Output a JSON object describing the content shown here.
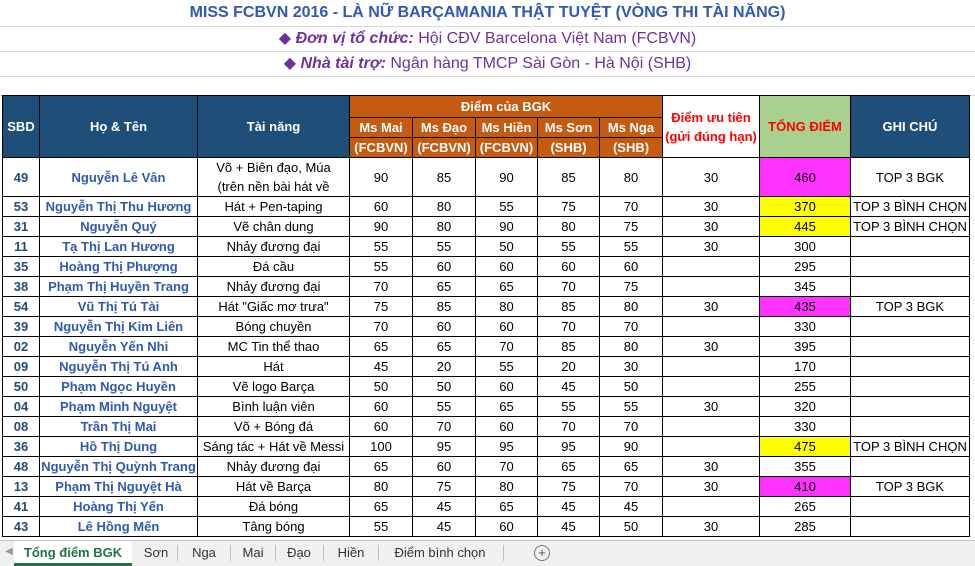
{
  "title": "MISS FCBVN 2016 - LÀ NỮ BARÇAMANIA THẬT TUYỆT (VÒNG THI TÀI NĂNG)",
  "organizer": {
    "label": "Đơn vị tổ chức:",
    "value": "Hội CĐV Barcelona Việt Nam (FCBVN)"
  },
  "sponsor": {
    "label": "Nhà tài trợ:",
    "value": "Ngân hàng TMCP Sài Gòn - Hà Nội (SHB)"
  },
  "bullet": "◆",
  "headers": {
    "sbd": "SBD",
    "name": "Họ & Tên",
    "talent": "Tài năng",
    "judges_group": "Điểm của BGK",
    "judges": [
      {
        "name": "Ms Mai",
        "org": "(FCBVN)"
      },
      {
        "name": "Ms Đạo",
        "org": "(FCBVN)"
      },
      {
        "name": "Ms Hiền",
        "org": "(FCBVN)"
      },
      {
        "name": "Ms Sơn",
        "org": "(SHB)"
      },
      {
        "name": "Ms Nga",
        "org": "(SHB)"
      }
    ],
    "priority_line1": "Điểm ưu tiên",
    "priority_line2": "(gửi đúng hạn)",
    "total": "TỔNG ĐIỂM",
    "note": "GHI CHÚ"
  },
  "rows": [
    {
      "sbd": "49",
      "name": "Nguyễn Lê Vân",
      "talent": "Võ + Biên đạo, Múa",
      "talent2": "(trên nền bài hát về",
      "mai": "90",
      "dao": "85",
      "hien": "90",
      "son": "85",
      "nga": "80",
      "priority": "30",
      "total": "460",
      "highlight": "magenta",
      "note": "TOP 3 BGK"
    },
    {
      "sbd": "53",
      "name": "Nguyễn Thị Thu Hương",
      "talent": "Hát + Pen-taping",
      "mai": "60",
      "dao": "80",
      "hien": "55",
      "son": "75",
      "nga": "70",
      "priority": "30",
      "total": "370",
      "highlight": "yellow",
      "note": "TOP 3 BÌNH CHỌN"
    },
    {
      "sbd": "31",
      "name": "Nguyễn Quý",
      "talent": "Vẽ chân dung",
      "mai": "90",
      "dao": "80",
      "hien": "90",
      "son": "80",
      "nga": "75",
      "priority": "30",
      "total": "445",
      "highlight": "yellow",
      "note": "TOP 3 BÌNH CHỌN"
    },
    {
      "sbd": "11",
      "name": "Tạ Thị Lan Hương",
      "talent": "Nhảy đương đại",
      "mai": "55",
      "dao": "55",
      "hien": "50",
      "son": "55",
      "nga": "55",
      "priority": "30",
      "total": "300",
      "highlight": "",
      "note": ""
    },
    {
      "sbd": "35",
      "name": "Hoàng Thị Phượng",
      "talent": "Đá cầu",
      "mai": "55",
      "dao": "60",
      "hien": "60",
      "son": "60",
      "nga": "60",
      "priority": "",
      "total": "295",
      "highlight": "",
      "note": ""
    },
    {
      "sbd": "38",
      "name": "Phạm Thị Huyền Trang",
      "talent": "Nhảy đương đại",
      "mai": "70",
      "dao": "65",
      "hien": "65",
      "son": "70",
      "nga": "75",
      "priority": "",
      "total": "345",
      "highlight": "",
      "note": ""
    },
    {
      "sbd": "54",
      "name": "Vũ Thị Tú Tài",
      "talent": "Hát \"Giấc mơ trưa\"",
      "mai": "75",
      "dao": "85",
      "hien": "80",
      "son": "85",
      "nga": "80",
      "priority": "30",
      "total": "435",
      "highlight": "magenta",
      "note": "TOP 3 BGK"
    },
    {
      "sbd": "39",
      "name": "Nguyễn Thị Kim Liên",
      "talent": "Bóng chuyền",
      "mai": "70",
      "dao": "60",
      "hien": "60",
      "son": "70",
      "nga": "70",
      "priority": "",
      "total": "330",
      "highlight": "",
      "note": ""
    },
    {
      "sbd": "02",
      "name": "Nguyễn Yến Nhi",
      "talent": "MC Tin thể thao",
      "mai": "65",
      "dao": "65",
      "hien": "70",
      "son": "85",
      "nga": "80",
      "priority": "30",
      "total": "395",
      "highlight": "",
      "note": ""
    },
    {
      "sbd": "09",
      "name": "Nguyễn Thị Tú Anh",
      "talent": "Hát",
      "mai": "45",
      "dao": "20",
      "hien": "55",
      "son": "20",
      "nga": "30",
      "priority": "",
      "total": "170",
      "highlight": "",
      "note": ""
    },
    {
      "sbd": "50",
      "name": "Phạm Ngọc Huyền",
      "talent": "Vẽ logo Barça",
      "mai": "50",
      "dao": "50",
      "hien": "60",
      "son": "45",
      "nga": "50",
      "priority": "",
      "total": "255",
      "highlight": "",
      "note": ""
    },
    {
      "sbd": "04",
      "name": "Phạm Minh Nguyệt",
      "talent": "Bình luận viên",
      "mai": "60",
      "dao": "55",
      "hien": "65",
      "son": "55",
      "nga": "55",
      "priority": "30",
      "total": "320",
      "highlight": "",
      "note": ""
    },
    {
      "sbd": "08",
      "name": "Trần Thị Mai",
      "talent": "Võ + Bóng đá",
      "mai": "60",
      "dao": "70",
      "hien": "60",
      "son": "70",
      "nga": "70",
      "priority": "",
      "total": "330",
      "highlight": "",
      "note": ""
    },
    {
      "sbd": "36",
      "name": "Hồ Thị Dung",
      "talent": "Sáng tác + Hát về Messi",
      "mai": "100",
      "dao": "95",
      "hien": "95",
      "son": "95",
      "nga": "90",
      "priority": "",
      "total": "475",
      "highlight": "yellow",
      "note": "TOP 3 BÌNH CHỌN"
    },
    {
      "sbd": "48",
      "name": "Nguyễn Thị Quỳnh Trang",
      "talent": "Nhảy đương đại",
      "mai": "65",
      "dao": "60",
      "hien": "70",
      "son": "65",
      "nga": "65",
      "priority": "30",
      "total": "355",
      "highlight": "",
      "note": ""
    },
    {
      "sbd": "13",
      "name": "Phạm Thị Nguyệt Hà",
      "talent": "Hát về Barça",
      "mai": "80",
      "dao": "75",
      "hien": "80",
      "son": "75",
      "nga": "70",
      "priority": "30",
      "total": "410",
      "highlight": "magenta",
      "note": "TOP 3 BGK"
    },
    {
      "sbd": "41",
      "name": "Hoàng Thị Yến",
      "talent": "Đá bóng",
      "mai": "65",
      "dao": "45",
      "hien": "65",
      "son": "45",
      "nga": "45",
      "priority": "",
      "total": "265",
      "highlight": "",
      "note": ""
    },
    {
      "sbd": "43",
      "name": "Lê Hồng Mến",
      "talent": "Tâng bóng",
      "mai": "55",
      "dao": "45",
      "hien": "60",
      "son": "45",
      "nga": "50",
      "priority": "30",
      "total": "285",
      "highlight": "",
      "note": ""
    }
  ],
  "tabs": [
    {
      "label": "Tổng điểm BGK",
      "active": true
    },
    {
      "label": "Sơn",
      "active": false
    },
    {
      "label": "Nga",
      "active": false
    },
    {
      "label": "Mai",
      "active": false
    },
    {
      "label": "Đạo",
      "active": false
    },
    {
      "label": "Hiền",
      "active": false
    },
    {
      "label": "Điểm bình chọn",
      "active": false
    }
  ],
  "add_sheet_symbol": "+",
  "nav_icons": {
    "prev": "◀",
    "next": "▶"
  },
  "colors": {
    "header_blue": "#1f4e79",
    "header_orange": "#c55a11",
    "total_green": "#a9d08e",
    "highlight_magenta": "#ff33ff",
    "highlight_yellow": "#ffff00",
    "accent_green": "#217346"
  }
}
